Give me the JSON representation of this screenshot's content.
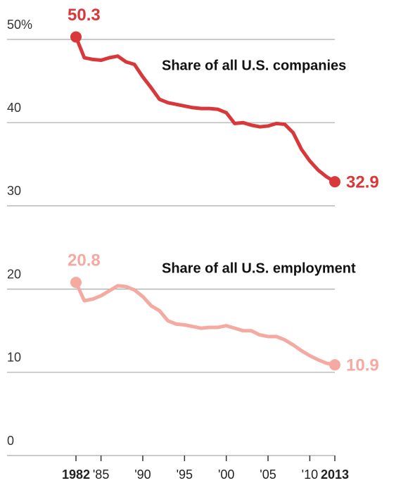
{
  "chart_data": {
    "type": "line",
    "x": [
      1982,
      1983,
      1984,
      1985,
      1986,
      1987,
      1988,
      1989,
      1990,
      1991,
      1992,
      1993,
      1994,
      1995,
      1996,
      1997,
      1998,
      1999,
      2000,
      2001,
      2002,
      2003,
      2004,
      2005,
      2006,
      2007,
      2008,
      2009,
      2010,
      2011,
      2012,
      2013
    ],
    "series": [
      {
        "name": "Share of all U.S. companies",
        "color": "#d9383a",
        "values": [
          50.3,
          47.8,
          47.6,
          47.5,
          47.8,
          48.0,
          47.3,
          47.0,
          45.5,
          44.2,
          42.8,
          42.4,
          42.2,
          42.0,
          41.8,
          41.7,
          41.7,
          41.6,
          41.2,
          39.9,
          40.0,
          39.7,
          39.5,
          39.6,
          39.9,
          39.8,
          38.8,
          36.8,
          35.4,
          34.3,
          33.5,
          32.9
        ]
      },
      {
        "name": "Share of all U.S. employment",
        "color": "#f4aaa0",
        "values": [
          20.8,
          18.6,
          18.8,
          19.2,
          19.8,
          20.4,
          20.3,
          19.9,
          19.1,
          18.0,
          17.4,
          16.2,
          15.8,
          15.7,
          15.5,
          15.3,
          15.4,
          15.4,
          15.6,
          15.3,
          15.0,
          15.0,
          14.5,
          14.3,
          14.3,
          13.9,
          13.3,
          12.6,
          12.0,
          11.5,
          11.1,
          10.9
        ]
      }
    ],
    "xlim": [
      1982,
      2013
    ],
    "xticks": [
      1982,
      {
        "value": 1985,
        "label": "'85"
      },
      {
        "value": 1990,
        "label": "'90"
      },
      {
        "value": 1995,
        "label": "'95"
      },
      {
        "value": 2000,
        "label": "'00"
      },
      {
        "value": 2005,
        "label": "'05"
      },
      {
        "value": 2010,
        "label": "'10"
      },
      2013
    ],
    "ylim": [
      0,
      50
    ],
    "yticks": [
      0,
      10,
      20,
      30,
      {
        "value": 40,
        "label": "40"
      },
      {
        "value": 50,
        "label": "50%"
      }
    ],
    "grid": true
  }
}
